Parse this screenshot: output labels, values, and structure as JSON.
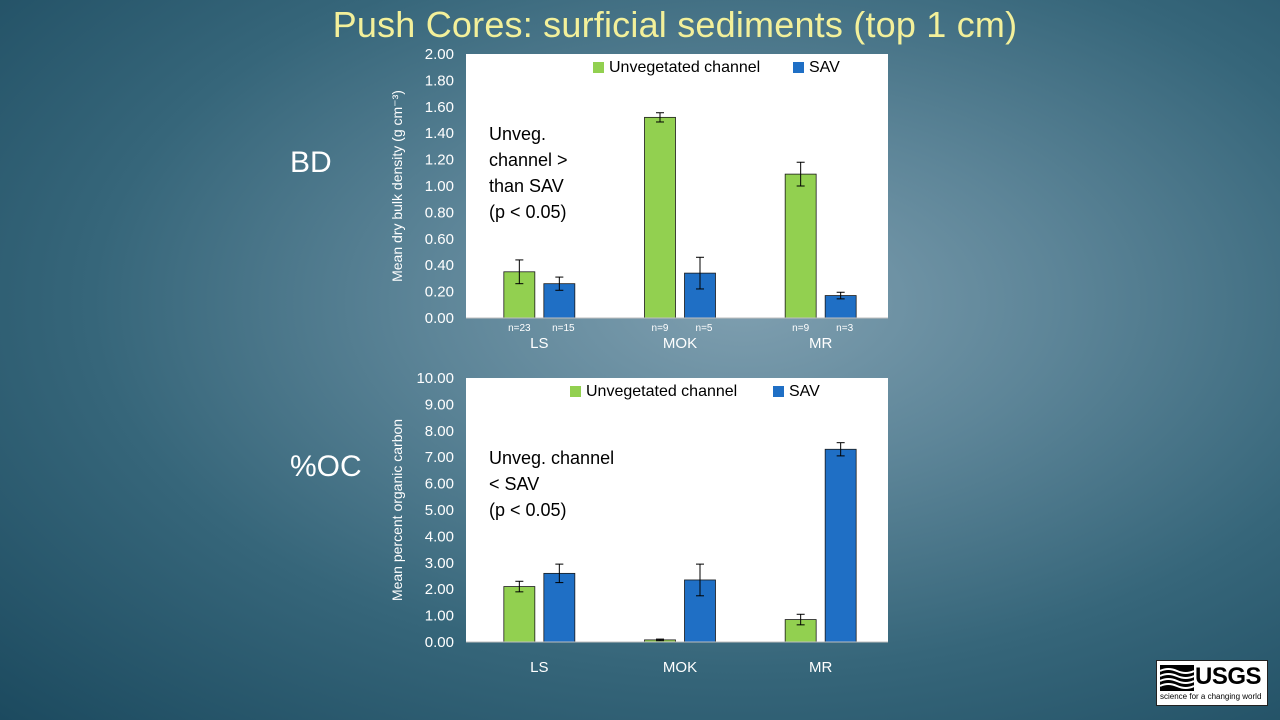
{
  "slide": {
    "title": "Push Cores: surficial sediments (top 1 cm)",
    "bd_label": "BD",
    "oc_label": "%OC"
  },
  "logo": {
    "text": "USGS",
    "tagline": "science for a changing world"
  },
  "colors": {
    "unvegetated": "#92d050",
    "sav": "#1f6fc5",
    "plot_bg": "#ffffff"
  },
  "chart_data": [
    {
      "id": "bd",
      "type": "bar",
      "categories": [
        "LS",
        "MOK",
        "MR"
      ],
      "series": [
        {
          "name": "Unvegetated channel",
          "values": [
            0.35,
            1.52,
            1.09
          ],
          "errors": [
            0.09,
            0.035,
            0.09
          ],
          "n": [
            "n=23",
            "n=9",
            "n=9"
          ]
        },
        {
          "name": "SAV",
          "values": [
            0.26,
            0.34,
            0.17
          ],
          "errors": [
            0.05,
            0.12,
            0.025
          ],
          "n": [
            "n=15",
            "n=5",
            "n=3"
          ]
        }
      ],
      "ylabel": "Mean dry bulk density (g cm⁻³)",
      "ylim": [
        0,
        2
      ],
      "yticks": [
        "0.00",
        "0.20",
        "0.40",
        "0.60",
        "0.80",
        "1.00",
        "1.20",
        "1.40",
        "1.60",
        "1.80",
        "2.00"
      ],
      "annotation": [
        "Unveg.",
        "channel >",
        "than SAV",
        "(p < 0.05)"
      ],
      "legend": "top-right"
    },
    {
      "id": "oc",
      "type": "bar",
      "categories": [
        "LS",
        "MOK",
        "MR"
      ],
      "series": [
        {
          "name": "Unvegetated channel",
          "values": [
            2.1,
            0.08,
            0.85
          ],
          "errors": [
            0.2,
            0.03,
            0.2
          ]
        },
        {
          "name": "SAV",
          "values": [
            2.6,
            2.35,
            7.3
          ],
          "errors": [
            0.35,
            0.6,
            0.25
          ]
        }
      ],
      "ylabel": "Mean percent organic carbon",
      "ylim": [
        0,
        10
      ],
      "yticks": [
        "0.00",
        "1.00",
        "2.00",
        "3.00",
        "4.00",
        "5.00",
        "6.00",
        "7.00",
        "8.00",
        "9.00",
        "10.00"
      ],
      "annotation": [
        "Unveg. channel",
        "< SAV",
        "(p < 0.05)"
      ],
      "legend": "top-right"
    }
  ]
}
